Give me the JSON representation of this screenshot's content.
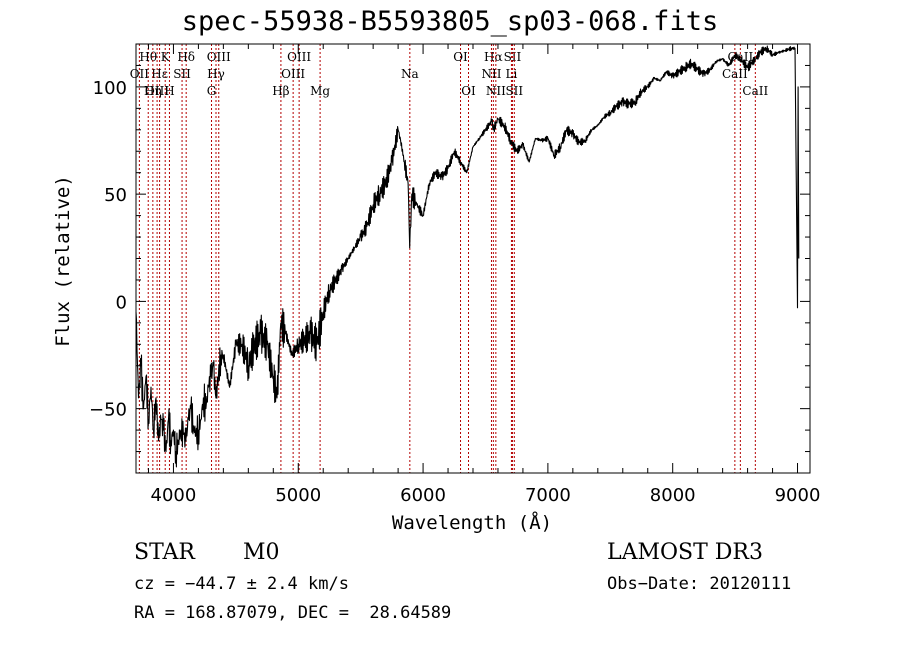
{
  "chart_data": {
    "type": "line",
    "title": "spec-55938-B5593805_sp03-068.fits",
    "xlabel": "Wavelength (Å)",
    "ylabel": "Flux (relative)",
    "xlim": [
      3700,
      9100
    ],
    "ylim": [
      -80,
      120
    ],
    "x_ticks": [
      4000,
      5000,
      6000,
      7000,
      8000,
      9000
    ],
    "y_ticks": [
      -50,
      0,
      50,
      100
    ],
    "grid": false,
    "series": [
      {
        "x": [
          3700,
          3720,
          3740,
          3760,
          3780,
          3800,
          3820,
          3840,
          3860,
          3880,
          3900,
          3920,
          3940,
          3960,
          3980,
          4000,
          4020,
          4040,
          4060,
          4080,
          4100,
          4120,
          4140,
          4160,
          4180,
          4200,
          4220,
          4240,
          4260,
          4280,
          4300,
          4320,
          4340,
          4360,
          4380,
          4400,
          4450,
          4500,
          4550,
          4600,
          4650,
          4700,
          4750,
          4800,
          4830,
          4860,
          4900,
          4950,
          5000,
          5050,
          5100,
          5150,
          5200,
          5250,
          5300,
          5350,
          5400,
          5450,
          5500,
          5550,
          5600,
          5650,
          5700,
          5750,
          5800,
          5820,
          5850,
          5880,
          5893,
          5910,
          5950,
          6000,
          6050,
          6100,
          6150,
          6200,
          6250,
          6300,
          6350,
          6400,
          6450,
          6500,
          6550,
          6563,
          6600,
          6650,
          6700,
          6750,
          6800,
          6850,
          6900,
          6950,
          7000,
          7050,
          7100,
          7150,
          7200,
          7250,
          7300,
          7350,
          7400,
          7450,
          7500,
          7550,
          7600,
          7650,
          7700,
          7750,
          7800,
          7850,
          7900,
          7950,
          8000,
          8050,
          8100,
          8150,
          8200,
          8250,
          8300,
          8350,
          8400,
          8450,
          8500,
          8542,
          8600,
          8662,
          8700,
          8750,
          8800,
          8850,
          8900,
          8950,
          8980,
          9000,
          9005,
          9010
        ],
        "y": [
          -5,
          -45,
          -30,
          -50,
          -35,
          -55,
          -40,
          -60,
          -45,
          -65,
          -55,
          -60,
          -70,
          -55,
          -65,
          -60,
          -70,
          -65,
          -60,
          -62,
          -65,
          -55,
          -50,
          -58,
          -62,
          -60,
          -55,
          -45,
          -50,
          -40,
          -35,
          -30,
          -45,
          -35,
          -25,
          -25,
          -40,
          -20,
          -20,
          -30,
          -20,
          -15,
          -20,
          -35,
          -45,
          -10,
          -15,
          -25,
          -20,
          -18,
          -15,
          -20,
          -5,
          5,
          10,
          15,
          20,
          25,
          30,
          35,
          45,
          50,
          55,
          65,
          80,
          75,
          65,
          55,
          25,
          50,
          45,
          40,
          55,
          60,
          58,
          62,
          70,
          65,
          60,
          72,
          76,
          80,
          84,
          80,
          85,
          82,
          75,
          70,
          73,
          65,
          76,
          75,
          76,
          68,
          72,
          80,
          78,
          74,
          75,
          80,
          82,
          86,
          88,
          91,
          93,
          92,
          93,
          98,
          100,
          104,
          103,
          107,
          105,
          107,
          109,
          111,
          108,
          106,
          108,
          112,
          113,
          110,
          115,
          113,
          109,
          113,
          116,
          118,
          115,
          116,
          117,
          118,
          118,
          -3,
          100,
          20
        ]
      }
    ],
    "line_marks": [
      {
        "label": "Hθ",
        "x": 3798,
        "row": 1
      },
      {
        "label": "OII",
        "x": 3727,
        "row": 2
      },
      {
        "label": "OIII",
        "x": 3869,
        "row": 3
      },
      {
        "label": "K",
        "x": 3934,
        "row": 1
      },
      {
        "label": "Hε",
        "x": 3889,
        "row": 2
      },
      {
        "label": "Hη",
        "x": 3835,
        "row": 3
      },
      {
        "label": "Hδ",
        "x": 4102,
        "row": 1
      },
      {
        "label": "SII",
        "x": 4069,
        "row": 2
      },
      {
        "label": "H",
        "x": 3968,
        "row": 3
      },
      {
        "label": "OIII",
        "x": 4363,
        "row": 1
      },
      {
        "label": "Hγ",
        "x": 4341,
        "row": 2
      },
      {
        "label": "G",
        "x": 4305,
        "row": 3
      },
      {
        "label": "OIII",
        "x": 5007,
        "row": 1
      },
      {
        "label": "OIII",
        "x": 4959,
        "row": 2
      },
      {
        "label": "Hβ",
        "x": 4861,
        "row": 3
      },
      {
        "label": "Mg",
        "x": 5175,
        "row": 3
      },
      {
        "label": "Na",
        "x": 5894,
        "row": 2
      },
      {
        "label": "OI",
        "x": 6300,
        "row": 1
      },
      {
        "label": "OI",
        "x": 6364,
        "row": 3
      },
      {
        "label": "Hα",
        "x": 6563,
        "row": 1
      },
      {
        "label": "SII",
        "x": 6716,
        "row": 1
      },
      {
        "label": "NII",
        "x": 6548,
        "row": 2
      },
      {
        "label": "Li",
        "x": 6708,
        "row": 2
      },
      {
        "label": "NII",
        "x": 6583,
        "row": 3
      },
      {
        "label": "SII",
        "x": 6731,
        "row": 3
      },
      {
        "label": "CaII",
        "x": 8542,
        "row": 1
      },
      {
        "label": "CaII",
        "x": 8498,
        "row": 2
      },
      {
        "label": "CaII",
        "x": 8662,
        "row": 3
      }
    ]
  },
  "info": {
    "class": "STAR",
    "subclass": "M0",
    "survey": "LAMOST DR3",
    "cz": "cz = −44.7 ± 2.4 km/s",
    "obs_date": "Obs−Date: 20120111",
    "coords": "RA = 168.87079, DEC =  28.64589"
  }
}
